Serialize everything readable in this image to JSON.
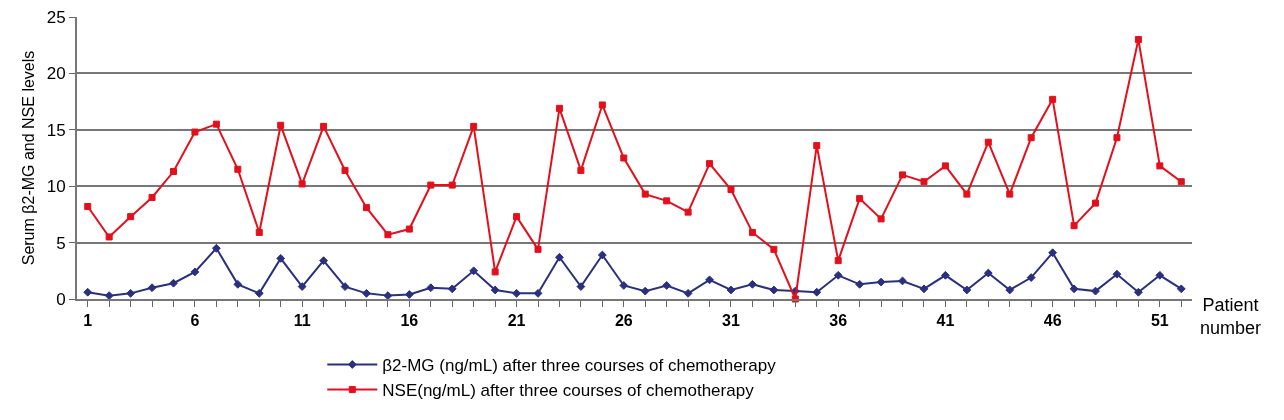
{
  "chart_data": {
    "type": "line",
    "xlabel": "Patient number",
    "ylabel": "Serum β2-MG and NSE levels",
    "x": [
      1,
      2,
      3,
      4,
      5,
      6,
      7,
      8,
      9,
      10,
      11,
      12,
      13,
      14,
      15,
      16,
      17,
      18,
      19,
      20,
      21,
      22,
      23,
      24,
      25,
      26,
      27,
      28,
      29,
      30,
      31,
      32,
      33,
      34,
      35,
      36,
      37,
      38,
      39,
      40,
      41,
      42,
      43,
      44,
      45,
      46,
      47,
      48,
      49,
      50,
      51,
      52
    ],
    "series": [
      {
        "name": "β2-MG (ng/mL) after three courses of chemotherapy",
        "color": "#2b2f7f",
        "marker": "diamond",
        "values": [
          0.6,
          0.3,
          0.5,
          1.0,
          1.4,
          2.4,
          4.5,
          1.3,
          0.5,
          3.6,
          1.1,
          3.4,
          1.1,
          0.5,
          0.3,
          0.4,
          1.0,
          0.9,
          2.5,
          0.8,
          0.5,
          0.5,
          3.7,
          1.1,
          3.9,
          1.2,
          0.7,
          1.2,
          0.5,
          1.7,
          0.8,
          1.3,
          0.8,
          0.7,
          0.6,
          2.1,
          1.3,
          1.5,
          1.6,
          0.9,
          2.1,
          0.8,
          2.3,
          0.8,
          1.9,
          4.1,
          0.9,
          0.7,
          2.2,
          0.6,
          2.1,
          0.9
        ]
      },
      {
        "name": "NSE(ng/mL) after three courses of chemotherapy",
        "color": "#e3101b",
        "marker": "square",
        "values": [
          8.2,
          5.5,
          7.3,
          9.0,
          11.3,
          14.8,
          15.5,
          11.5,
          5.9,
          15.4,
          10.2,
          15.3,
          11.4,
          8.1,
          5.7,
          6.2,
          10.1,
          10.1,
          15.3,
          2.4,
          7.3,
          4.4,
          16.9,
          11.4,
          17.2,
          12.5,
          9.3,
          8.7,
          7.7,
          12.0,
          9.7,
          5.9,
          4.4,
          0.0,
          13.6,
          3.4,
          8.9,
          7.1,
          11.0,
          10.4,
          11.8,
          9.3,
          13.9,
          9.3,
          14.3,
          17.7,
          6.5,
          8.5,
          14.3,
          23.0,
          11.8,
          10.4
        ]
      }
    ],
    "xlim": [
      0.5,
      52.5
    ],
    "xticks": [
      1,
      {
        "value": 2,
        "label": null
      },
      {
        "value": 3,
        "label": null
      },
      {
        "value": 4,
        "label": null
      },
      {
        "value": 5,
        "label": null
      },
      6,
      {
        "value": 7,
        "label": null
      },
      {
        "value": 8,
        "label": null
      },
      {
        "value": 9,
        "label": null
      },
      {
        "value": 10,
        "label": null
      },
      11,
      {
        "value": 12,
        "label": null
      },
      {
        "value": 13,
        "label": null
      },
      {
        "value": 14,
        "label": null
      },
      {
        "value": 15,
        "label": null
      },
      16,
      {
        "value": 17,
        "label": null
      },
      {
        "value": 18,
        "label": null
      },
      {
        "value": 19,
        "label": null
      },
      {
        "value": 20,
        "label": null
      },
      21,
      {
        "value": 22,
        "label": null
      },
      {
        "value": 23,
        "label": null
      },
      {
        "value": 24,
        "label": null
      },
      {
        "value": 25,
        "label": null
      },
      26,
      {
        "value": 27,
        "label": null
      },
      {
        "value": 28,
        "label": null
      },
      {
        "value": 29,
        "label": null
      },
      {
        "value": 30,
        "label": null
      },
      31,
      {
        "value": 32,
        "label": null
      },
      {
        "value": 33,
        "label": null
      },
      {
        "value": 34,
        "label": null
      },
      {
        "value": 35,
        "label": null
      },
      36,
      {
        "value": 37,
        "label": null
      },
      {
        "value": 38,
        "label": null
      },
      {
        "value": 39,
        "label": null
      },
      {
        "value": 40,
        "label": null
      },
      41,
      {
        "value": 42,
        "label": null
      },
      {
        "value": 43,
        "label": null
      },
      {
        "value": 44,
        "label": null
      },
      {
        "value": 45,
        "label": null
      },
      46,
      {
        "value": 47,
        "label": null
      },
      {
        "value": 48,
        "label": null
      },
      {
        "value": 49,
        "label": null
      },
      {
        "value": 50,
        "label": null
      },
      51,
      {
        "value": 52,
        "label": null
      }
    ],
    "ylim": [
      0,
      25
    ],
    "yticks": [
      0,
      5,
      10,
      15,
      20,
      25
    ],
    "grid": "y",
    "legend": "bottom",
    "line_style": "solid"
  }
}
